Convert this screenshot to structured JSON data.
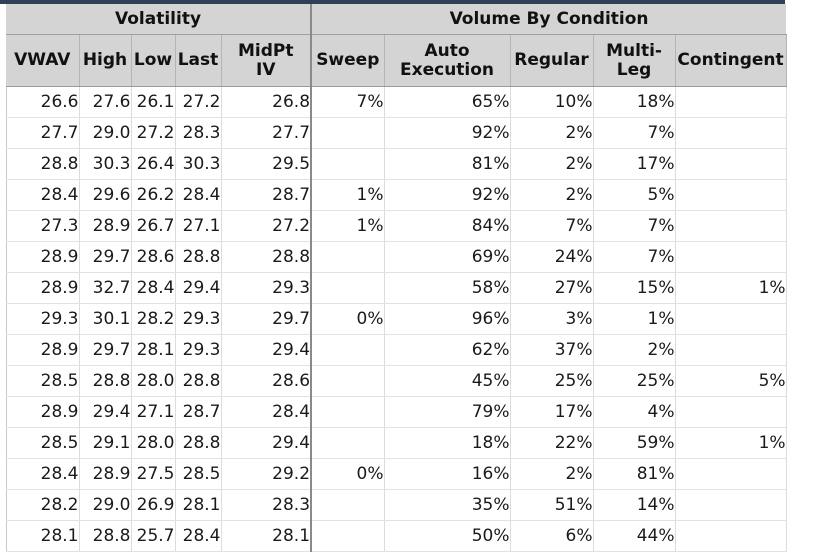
{
  "groups": {
    "volatility": "Volatility",
    "volume_by_condition": "Volume By Condition"
  },
  "columns": [
    "VWAV",
    "High",
    "Low",
    "Last",
    "MidPt\nIV",
    "Sweep",
    "Auto\nExecution",
    "Regular",
    "Multi-\nLeg",
    "Contingent"
  ],
  "rows": [
    [
      "26.6",
      "27.6",
      "26.1",
      "27.2",
      "26.8",
      "7%",
      "65%",
      "10%",
      "18%",
      ""
    ],
    [
      "27.7",
      "29.0",
      "27.2",
      "28.3",
      "27.7",
      "",
      "92%",
      "2%",
      "7%",
      ""
    ],
    [
      "28.8",
      "30.3",
      "26.4",
      "30.3",
      "29.5",
      "",
      "81%",
      "2%",
      "17%",
      ""
    ],
    [
      "28.4",
      "29.6",
      "26.2",
      "28.4",
      "28.7",
      "1%",
      "92%",
      "2%",
      "5%",
      ""
    ],
    [
      "27.3",
      "28.9",
      "26.7",
      "27.1",
      "27.2",
      "1%",
      "84%",
      "7%",
      "7%",
      ""
    ],
    [
      "28.9",
      "29.7",
      "28.6",
      "28.8",
      "28.8",
      "",
      "69%",
      "24%",
      "7%",
      ""
    ],
    [
      "28.9",
      "32.7",
      "28.4",
      "29.4",
      "29.3",
      "",
      "58%",
      "27%",
      "15%",
      "1%"
    ],
    [
      "29.3",
      "30.1",
      "28.2",
      "29.3",
      "29.7",
      "0%",
      "96%",
      "3%",
      "1%",
      ""
    ],
    [
      "28.9",
      "29.7",
      "28.1",
      "29.3",
      "29.4",
      "",
      "62%",
      "37%",
      "2%",
      ""
    ],
    [
      "28.5",
      "28.8",
      "28.0",
      "28.8",
      "28.6",
      "",
      "45%",
      "25%",
      "25%",
      "5%"
    ],
    [
      "28.9",
      "29.4",
      "27.1",
      "28.7",
      "28.4",
      "",
      "79%",
      "17%",
      "4%",
      ""
    ],
    [
      "28.5",
      "29.1",
      "28.0",
      "28.8",
      "29.4",
      "",
      "18%",
      "22%",
      "59%",
      "1%"
    ],
    [
      "28.4",
      "28.9",
      "27.5",
      "28.5",
      "29.2",
      "0%",
      "16%",
      "2%",
      "81%",
      ""
    ],
    [
      "28.2",
      "29.0",
      "26.9",
      "28.1",
      "28.3",
      "",
      "35%",
      "51%",
      "14%",
      ""
    ],
    [
      "28.1",
      "28.8",
      "25.7",
      "28.4",
      "28.1",
      "",
      "50%",
      "6%",
      "44%",
      ""
    ]
  ]
}
